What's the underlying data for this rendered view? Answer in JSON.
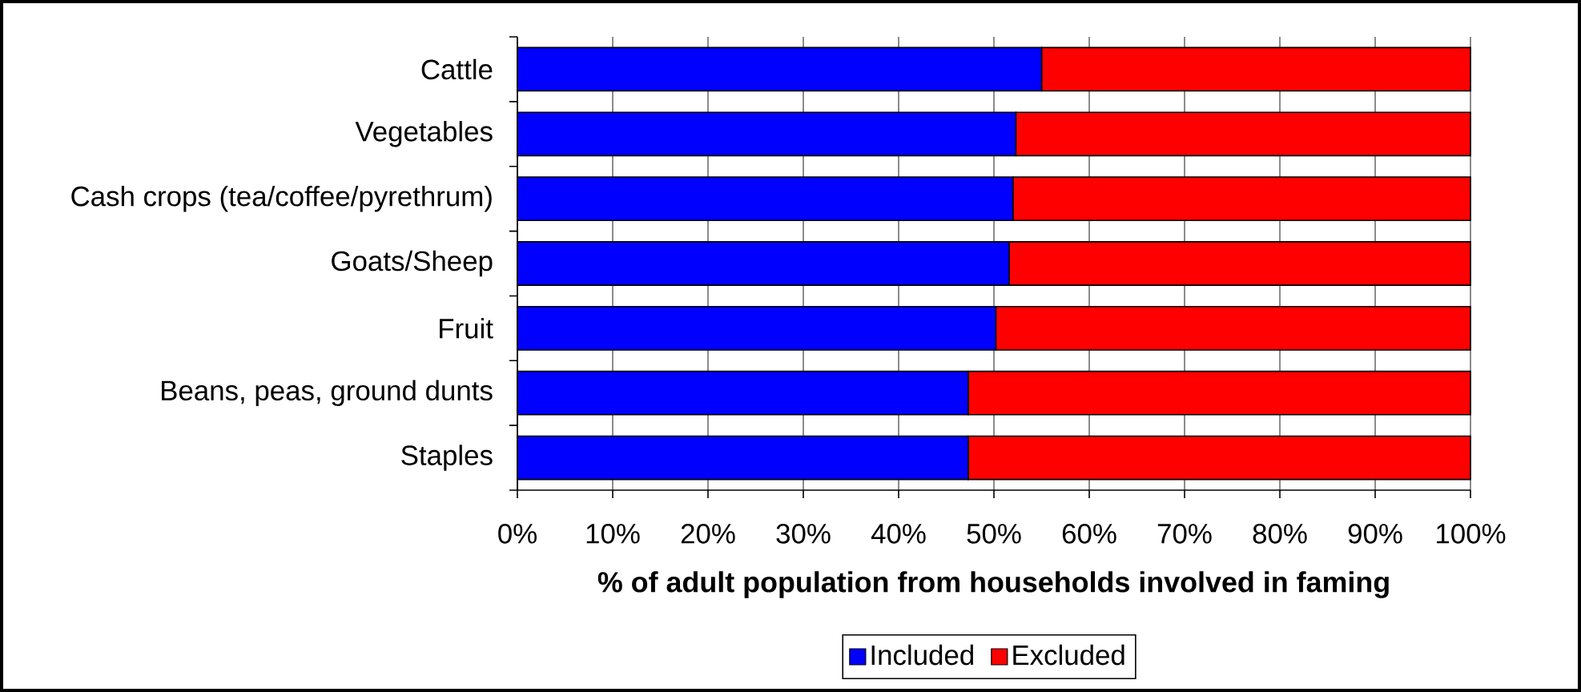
{
  "chart_data": {
    "type": "bar",
    "orientation": "horizontal",
    "stacked": true,
    "categories": [
      "Cattle",
      "Vegetables",
      "Cash crops (tea/coffee/pyrethrum)",
      "Goats/Sheep",
      "Fruit",
      "Beans, peas, ground dunts",
      "Staples"
    ],
    "series": [
      {
        "name": "Included",
        "color": "#0000ff",
        "values": [
          55.0,
          52.3,
          52.0,
          51.6,
          50.2,
          47.3,
          47.3
        ]
      },
      {
        "name": "Excluded",
        "color": "#ff0000",
        "values": [
          45.0,
          47.7,
          48.0,
          48.4,
          49.8,
          52.7,
          52.7
        ]
      }
    ],
    "xlabel": "% of adult population from households involved in faming",
    "xlim": [
      0,
      100
    ],
    "xticks": [
      {
        "value": 0,
        "label": "0%"
      },
      {
        "value": 10,
        "label": "10%"
      },
      {
        "value": 20,
        "label": "20%"
      },
      {
        "value": 30,
        "label": "30%"
      },
      {
        "value": 40,
        "label": "40%"
      },
      {
        "value": 50,
        "label": "50%"
      },
      {
        "value": 60,
        "label": "60%"
      },
      {
        "value": 70,
        "label": "70%"
      },
      {
        "value": 80,
        "label": "80%"
      },
      {
        "value": 90,
        "label": "90%"
      },
      {
        "value": 100,
        "label": "100%"
      }
    ],
    "grid": "x",
    "legend": "bottom"
  }
}
